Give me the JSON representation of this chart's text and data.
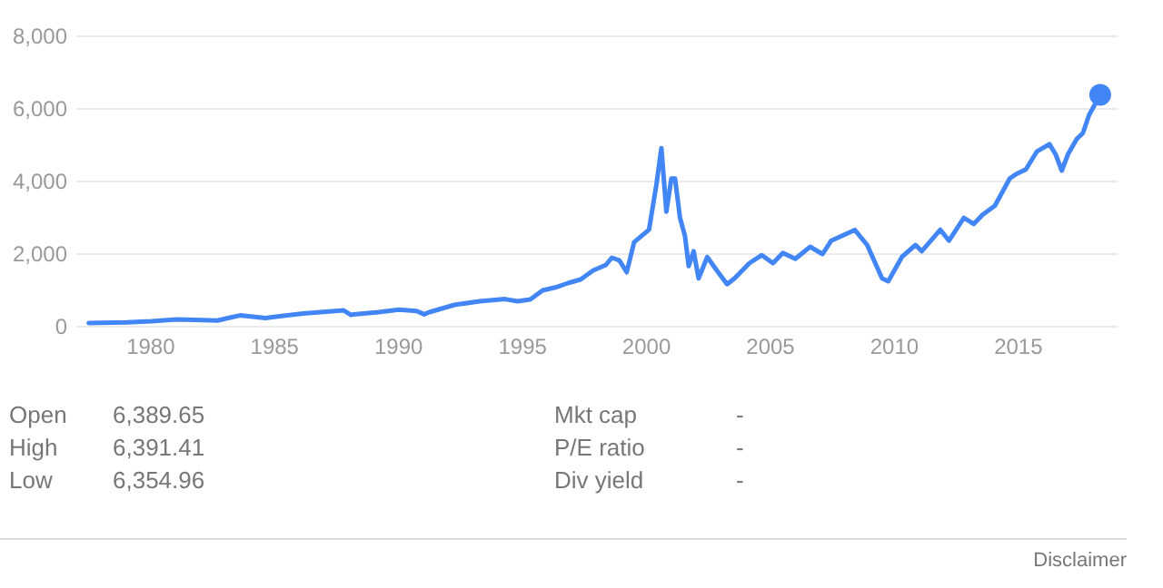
{
  "chart_data": {
    "type": "line",
    "x": [
      1977.5,
      1979.03,
      1980.04,
      1981.06,
      1982.08,
      1982.69,
      1983.6,
      1984.62,
      1985.13,
      1986.15,
      1987.78,
      1988.08,
      1988.18,
      1989.2,
      1990.01,
      1990.73,
      1991.03,
      1991.24,
      1992.25,
      1993.27,
      1994.29,
      1994.8,
      1995.31,
      1995.81,
      1996.32,
      1996.83,
      1997.34,
      1997.85,
      1998.36,
      1998.6,
      1998.9,
      1999.2,
      1999.5,
      2000.1,
      2000.4,
      2000.6,
      2000.8,
      2001.0,
      2001.15,
      2001.35,
      2001.55,
      2001.7,
      2001.9,
      2002.1,
      2002.45,
      2002.8,
      2003.25,
      2003.55,
      2004.15,
      2004.65,
      2005.1,
      2005.5,
      2006.0,
      2006.6,
      2007.1,
      2007.45,
      2008.3,
      2008.4,
      2008.9,
      2009.5,
      2009.75,
      2010.3,
      2010.85,
      2011.1,
      2011.85,
      2012.2,
      2012.8,
      2013.2,
      2013.55,
      2014.05,
      2014.65,
      2014.9,
      2015.3,
      2015.75,
      2016.25,
      2016.5,
      2016.75,
      2017.0,
      2017.35,
      2017.6,
      2017.85,
      2018.3
    ],
    "series": [
      {
        "color": "#4285f4",
        "values": [
          100,
          120,
          150,
          200,
          180,
          170,
          310,
          240,
          280,
          360,
          450,
          320,
          340,
          400,
          470,
          430,
          340,
          400,
          600,
          700,
          760,
          700,
          750,
          1000,
          1080,
          1200,
          1300,
          1550,
          1700,
          1900,
          1830,
          1500,
          2330,
          2670,
          3920,
          4920,
          3170,
          4080,
          4080,
          3000,
          2500,
          1670,
          2080,
          1330,
          1920,
          1580,
          1170,
          1330,
          1750,
          1970,
          1750,
          2030,
          1870,
          2200,
          2000,
          2370,
          2630,
          2665,
          2250,
          1330,
          1250,
          1920,
          2250,
          2080,
          2670,
          2370,
          3000,
          2830,
          3080,
          3330,
          4080,
          4200,
          4330,
          4830,
          5030,
          4750,
          4300,
          4750,
          5170,
          5330,
          5830,
          6390
        ]
      },
      {
        "type": "scatter",
        "color": "#4285f4",
        "marker": "circle",
        "x": [
          2018.3
        ],
        "values": [
          6390
        ]
      }
    ],
    "xlim": [
      1977,
      2019
    ],
    "xticks": [
      1980,
      1985,
      1990,
      1995,
      2000,
      2005,
      2010,
      2015
    ],
    "ylim": [
      0,
      8000
    ],
    "yticks": [
      {
        "value": 0,
        "label": "0"
      },
      {
        "value": 2000,
        "label": "2,000"
      },
      {
        "value": 4000,
        "label": "4,000"
      },
      {
        "value": 6000,
        "label": "6,000"
      },
      {
        "value": 8000,
        "label": "8,000"
      }
    ],
    "grid": "y",
    "annotations": [
      "Open",
      "6,389.65",
      "High",
      "6,391.41",
      "Low",
      "6,354.96",
      "Mkt cap",
      "-",
      "P/E ratio",
      "-",
      "Div yield",
      "-",
      "Disclaimer"
    ]
  }
}
